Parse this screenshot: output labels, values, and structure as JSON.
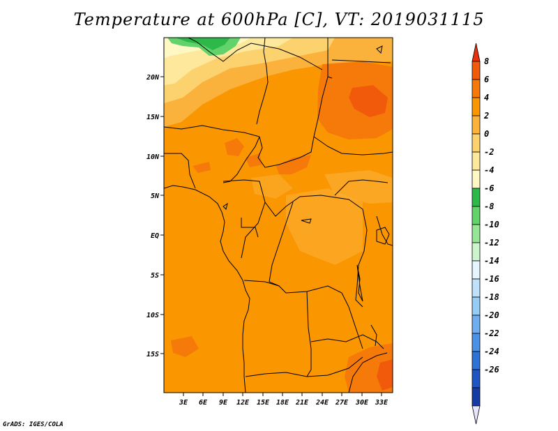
{
  "title": "Temperature at 600hPa [C], VT: 2019031115",
  "credit": "GrADS: IGES/COLA",
  "map": {
    "lat_labels": [
      "20N",
      "15N",
      "10N",
      "5N",
      "EQ",
      "5S",
      "10S",
      "15S"
    ],
    "lon_labels": [
      "3E",
      "6E",
      "9E",
      "12E",
      "15E",
      "18E",
      "21E",
      "24E",
      "27E",
      "30E",
      "33E"
    ]
  },
  "colorbar": {
    "labels": [
      "8",
      "6",
      "4",
      "2",
      "0",
      "-2",
      "-4",
      "-6",
      "-8",
      "-10",
      "-12",
      "-14",
      "-16",
      "-18",
      "-20",
      "-22",
      "-24",
      "-26"
    ],
    "colors": [
      "#e8320c",
      "#f05a0a",
      "#f57a0a",
      "#fa9600",
      "#fbb23c",
      "#fcd26e",
      "#fde89b",
      "#fff7c4",
      "#2db84a",
      "#62d26a",
      "#96e696",
      "#cdf5cd",
      "#e6f5ff",
      "#c0e1fb",
      "#96cdf5",
      "#6eaeee",
      "#4b91e6",
      "#2d73d7",
      "#1e55c3",
      "#143ca5",
      "#0a1e78"
    ]
  }
}
